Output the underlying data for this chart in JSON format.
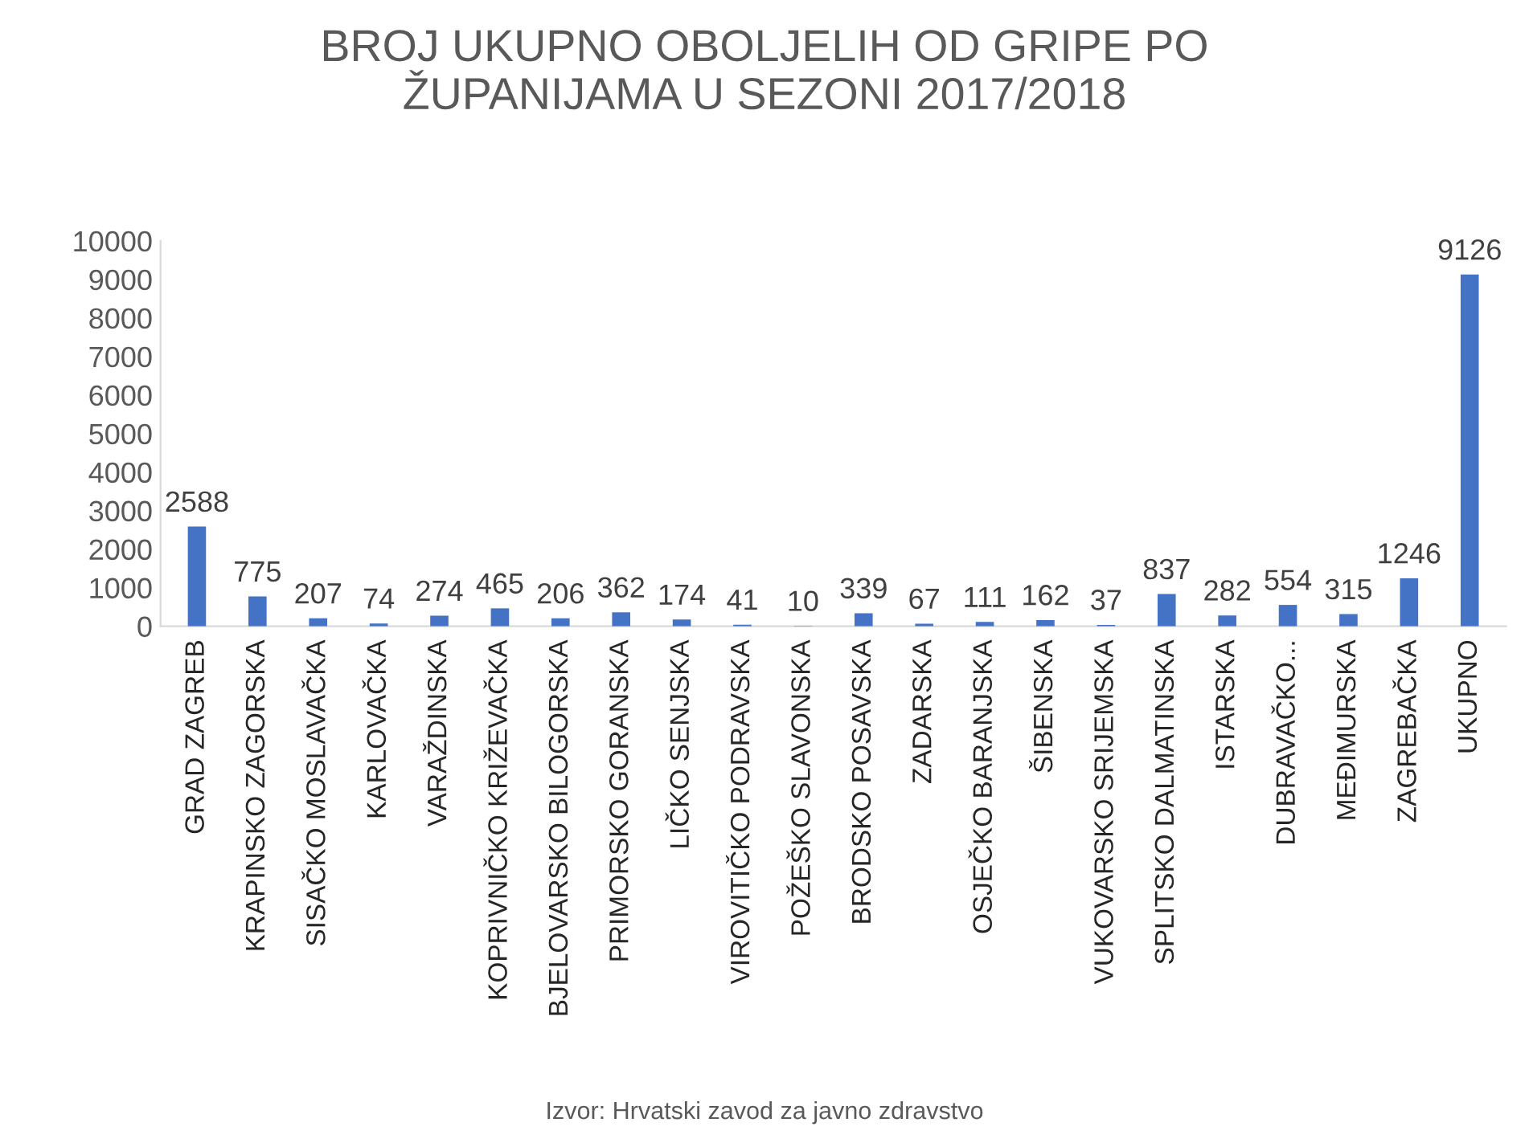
{
  "chart_data": {
    "type": "bar",
    "title": "BROJ UKUPNO OBOLJELIH OD GRIPE PO\nŽUPANIJAMA U SEZONI 2017/2018",
    "categories": [
      "GRAD ZAGREB",
      "KRAPINSKO ZAGORSKA",
      "SISAČKO MOSLAVAČKA",
      "KARLOVAČKA",
      "VARAŽDINSKA",
      "KOPRIVNIČKO KRIŽEVAČKA",
      "BJELOVARSKO BILOGORSKA",
      "PRIMORSKO GORANSKA",
      "LIČKO SENJSKA",
      "VIROVITIČKO PODRAVSKA",
      "POŽEŠKO SLAVONSKA",
      "BRODSKO POSAVSKA",
      "ZADARSKA",
      "OSJEČKO BARANJSKA",
      "ŠIBENSKA",
      "VUKOVARSKO SRIJEMSKA",
      "SPLITSKO DALMATINSKA",
      "ISTARSKA",
      "DUBRAVAČKO...",
      "MEĐIMURSKA",
      "ZAGREBAČKA",
      "UKUPNO"
    ],
    "values": [
      2588,
      775,
      207,
      74,
      274,
      465,
      206,
      362,
      174,
      41,
      10,
      339,
      67,
      111,
      162,
      37,
      837,
      282,
      554,
      315,
      1246,
      9126
    ],
    "color": "#4472c4",
    "ylim": [
      0,
      10000
    ],
    "yticks": [
      0,
      1000,
      2000,
      3000,
      4000,
      5000,
      6000,
      7000,
      8000,
      9000,
      10000
    ],
    "data_labels": true,
    "grid": false,
    "legend": false,
    "annotations": [
      "Izvor: Hrvatski zavod za javno zdravstvo"
    ]
  }
}
